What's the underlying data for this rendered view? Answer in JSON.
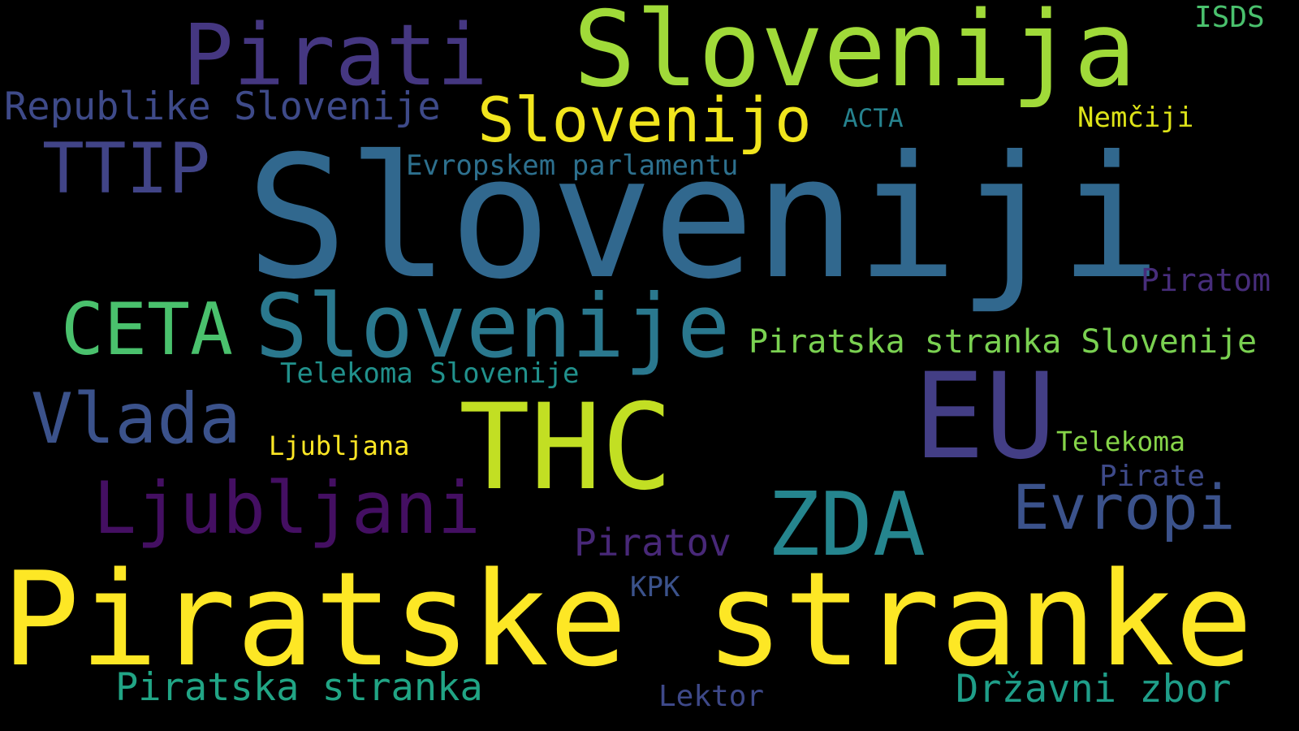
{
  "words": {
    "slovenija": {
      "text": "Slovenija",
      "color": "#a0da39"
    },
    "pirati": {
      "text": "Pirati",
      "color": "#453781"
    },
    "isds": {
      "text": "ISDS",
      "color": "#4ac16d"
    },
    "republike_slovenije": {
      "text": "Republike Slovenije",
      "color": "#3e4a89"
    },
    "slovenijo": {
      "text": "Slovenijo",
      "color": "#f1e51d"
    },
    "acta": {
      "text": "ACTA",
      "color": "#26828e"
    },
    "nemciji": {
      "text": "Nemčiji",
      "color": "#dde318"
    },
    "ttip": {
      "text": "TTIP",
      "color": "#414487"
    },
    "evropskem_parlamentu": {
      "text": "Evropskem parlamentu",
      "color": "#2d708e"
    },
    "sloveniji": {
      "text": "Sloveniji",
      "color": "#31688e"
    },
    "piratom": {
      "text": "Piratom",
      "color": "#472d7b"
    },
    "ceta": {
      "text": "CETA",
      "color": "#4ac16d"
    },
    "slovenije": {
      "text": "Slovenije",
      "color": "#2a788e"
    },
    "piratska_stranka_slovenije": {
      "text": "Piratska stranka Slovenije",
      "color": "#7ad151"
    },
    "telekoma_slovenije": {
      "text": "Telekoma Slovenije",
      "color": "#21918c"
    },
    "eu": {
      "text": "EU",
      "color": "#433e85"
    },
    "vlada": {
      "text": "Vlada",
      "color": "#3b528b"
    },
    "thc": {
      "text": "THC",
      "color": "#c2df23"
    },
    "ljubljana": {
      "text": "Ljubljana",
      "color": "#fde725"
    },
    "telekoma": {
      "text": "Telekoma",
      "color": "#86d549"
    },
    "pirate": {
      "text": "Pirate",
      "color": "#3e4a89"
    },
    "ljubljani": {
      "text": "Ljubljani",
      "color": "#440f62"
    },
    "zda": {
      "text": "ZDA",
      "color": "#25858e"
    },
    "evropi": {
      "text": "Evropi",
      "color": "#3b528b"
    },
    "piratov": {
      "text": "Piratov",
      "color": "#482878"
    },
    "kpk": {
      "text": "KPK",
      "color": "#3b528b"
    },
    "piratske_stranke": {
      "text": "Piratske stranke",
      "color": "#fde725"
    },
    "piratska_stranka": {
      "text": "Piratska stranka",
      "color": "#21a585"
    },
    "lektor": {
      "text": "Lektor",
      "color": "#3e4989"
    },
    "drzavni_zbor": {
      "text": "Državni zbor",
      "color": "#1f9e89"
    }
  }
}
